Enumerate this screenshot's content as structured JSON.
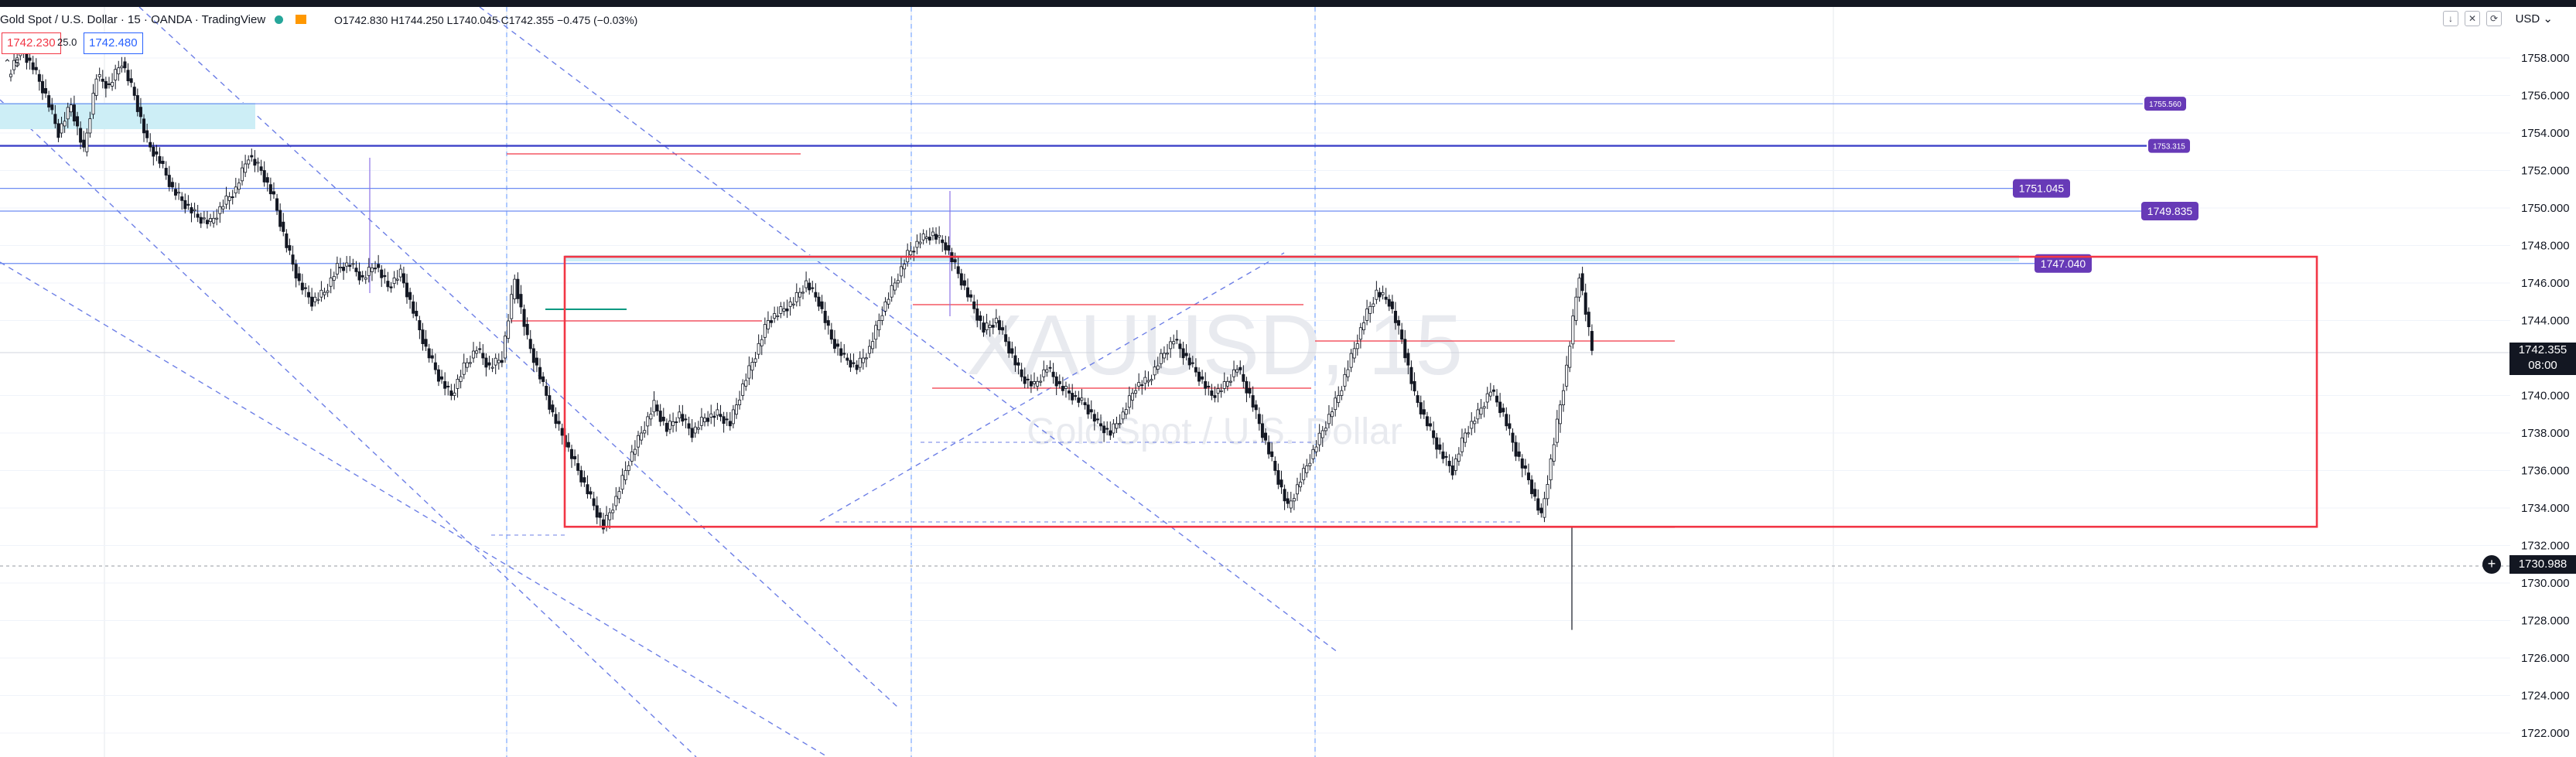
{
  "header": {
    "symbol_title": "Gold Spot / U.S. Dollar · 15 · OANDA · TradingView",
    "ohlc": "O1742.830 H1744.250 L1740.045 C1742.355 −0.475 (−0.03%)",
    "sell_price": "1742.230",
    "spread": "25.0",
    "buy_price": "1742.480",
    "collapse_label": "5",
    "currency": "USD",
    "live_color": "#26a69a"
  },
  "watermark": {
    "ticker": "XAUUSD, 15",
    "name": "Gold Spot / U.S. Dollar"
  },
  "price_scale": {
    "ticks": [
      "1758.000",
      "1756.000",
      "1754.000",
      "1752.000",
      "1750.000",
      "1748.000",
      "1746.000",
      "1744.000",
      "1740.000",
      "1738.000",
      "1736.000",
      "1734.000",
      "1732.000",
      "1730.000",
      "1728.000",
      "1726.000",
      "1724.000",
      "1722.000"
    ],
    "current_price": "1742.355",
    "countdown": "08:00",
    "crosshair_price": "1730.988"
  },
  "drawings": {
    "level_labels": [
      "1755.560",
      "1753.315",
      "1751.045",
      "1749.835",
      "1747.040"
    ],
    "accent_color": "#673ab7",
    "range_box_color": "#f23645"
  },
  "chart_data": {
    "type": "candlestick",
    "symbol": "XAUUSD",
    "interval": "15",
    "ylim": [
      1721.0,
      1759.4
    ],
    "horizontal_levels": [
      1755.56,
      1753.315,
      1751.045,
      1749.835,
      1747.04
    ],
    "range_box": [
      1733.0,
      1747.4
    ],
    "last_price": 1742.355,
    "crosshair_price": 1730.988,
    "close_path": [
      1757,
      1758.5,
      1757.5,
      1756,
      1754,
      1755.5,
      1753,
      1757,
      1756.5,
      1757.8,
      1756,
      1753.5,
      1752.5,
      1751,
      1750.2,
      1749.5,
      1749.2,
      1750.2,
      1751,
      1752.8,
      1752,
      1750.5,
      1748,
      1746,
      1745,
      1745.5,
      1746.8,
      1747,
      1746.2,
      1747,
      1745.8,
      1746.5,
      1744.5,
      1742.5,
      1741,
      1740,
      1741.5,
      1742.5,
      1741.5,
      1742,
      1746.2,
      1743,
      1741,
      1739,
      1737.5,
      1736,
      1734.5,
      1733,
      1734.5,
      1736.5,
      1738,
      1739.5,
      1738.2,
      1739,
      1738,
      1738.8,
      1739,
      1738.5,
      1740.5,
      1742.2,
      1744,
      1744.5,
      1745,
      1746,
      1745,
      1743,
      1742,
      1741.5,
      1742.5,
      1744.5,
      1746,
      1747.5,
      1748.3,
      1748.6,
      1748,
      1746.5,
      1745,
      1743.5,
      1744,
      1742.5,
      1741,
      1740.5,
      1741.5,
      1740.5,
      1740,
      1739.5,
      1738.5,
      1738,
      1739,
      1740.5,
      1740.8,
      1742,
      1743,
      1742,
      1741,
      1740,
      1740.5,
      1741.5,
      1740,
      1738,
      1736,
      1734,
      1735.5,
      1737,
      1738.5,
      1740,
      1742,
      1744,
      1745.5,
      1745,
      1743,
      1740,
      1738.5,
      1737,
      1736,
      1738,
      1739,
      1740.3,
      1739,
      1737,
      1735.5,
      1733.5,
      1737.5,
      1741.5,
      1746.5,
      1742.4
    ]
  }
}
